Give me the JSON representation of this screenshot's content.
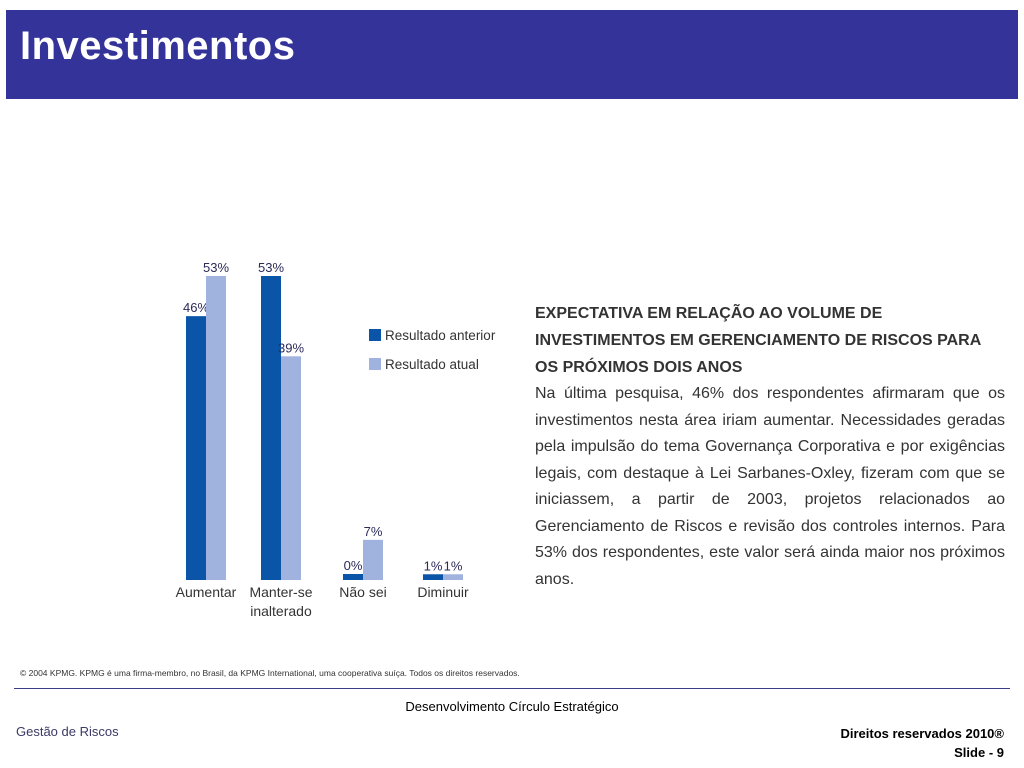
{
  "header": {
    "title": "Investimentos"
  },
  "chart_data": {
    "type": "bar",
    "categories": [
      [
        "Aumentar"
      ],
      [
        "Manter-se",
        "inalterado"
      ],
      [
        "Não sei"
      ],
      [
        "Diminuir"
      ]
    ],
    "series": [
      {
        "name": "Resultado anterior",
        "values": [
          46,
          53,
          0,
          1
        ],
        "color": "#0a55a8"
      },
      {
        "name": "Resultado atual",
        "values": [
          53,
          39,
          7,
          1
        ],
        "color": "#9fb3de"
      }
    ],
    "value_suffix": "%",
    "ylim": [
      0,
      53
    ],
    "legend_position": "right",
    "grid": false,
    "title": "",
    "xlabel": "",
    "ylabel": ""
  },
  "description": {
    "heading": "Expectativa em relação ao volume de investimentos em gerenciamento de riscos para os próximos dois anos",
    "body": "Na última pesquisa, 46% dos respondentes afirmaram que os investimentos nesta área iriam aumentar. Necessidades geradas pela impulsão do tema Governança Corporativa e por exigências legais, com destaque à Lei Sarbanes-Oxley, fizeram com que se iniciassem, a partir de 2003, projetos relacionados ao Gerenciamento de Riscos e revisão dos controles internos. Para 53% dos respondentes, este valor será ainda maior nos próximos anos."
  },
  "copyright": "© 2004 KPMG. KPMG é uma firma-membro, no Brasil, da KPMG International, uma cooperativa suíça. Todos os direitos reservados.",
  "footer": {
    "center": "Desenvolvimento Círculo Estratégico",
    "left": "Gestão de Riscos",
    "rights": "Direitos reservados 2010®",
    "slide": "Slide - 9"
  }
}
